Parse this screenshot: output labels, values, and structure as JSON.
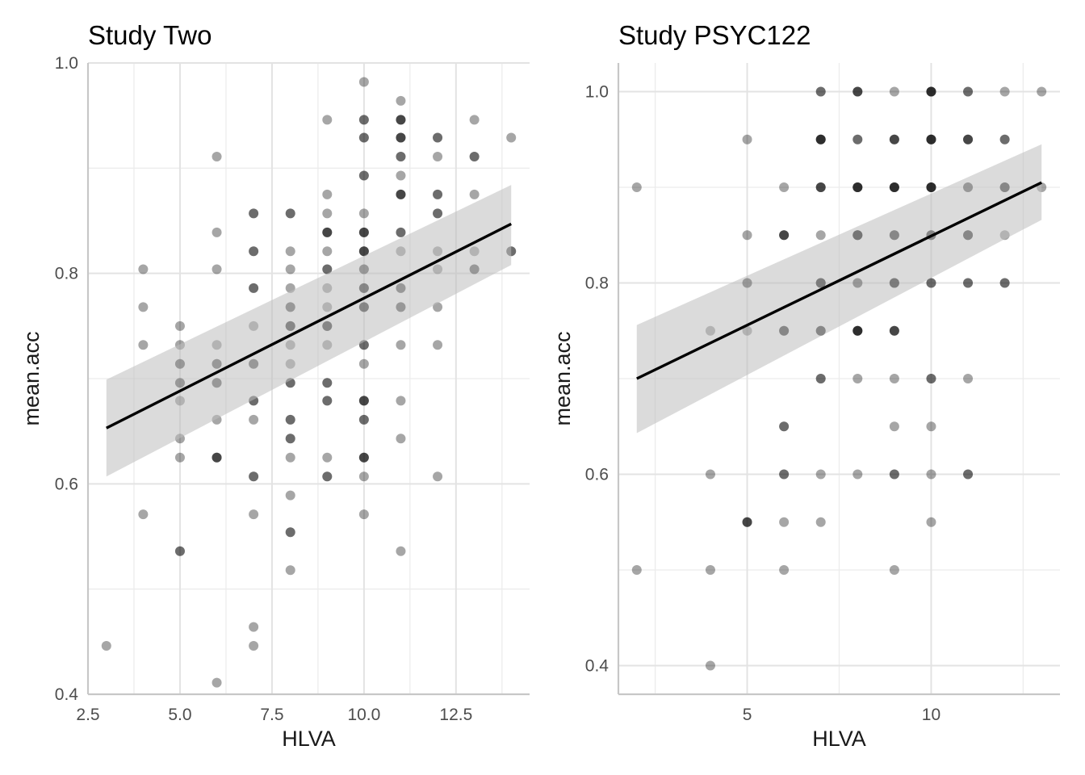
{
  "chart_data": [
    {
      "type": "scatter",
      "title": "Study Two",
      "xlabel": "HLVA",
      "ylabel": "mean.acc",
      "xlim": [
        2.5,
        14.5
      ],
      "ylim": [
        0.4,
        1.0
      ],
      "x_ticks": [
        2.5,
        5.0,
        7.5,
        10.0,
        12.5
      ],
      "x_tick_labels": [
        "2.5",
        "5.0",
        "7.5",
        "10.0",
        "12.5"
      ],
      "y_ticks": [
        0.4,
        0.6,
        0.8,
        1.0
      ],
      "y_tick_labels": [
        "0.4",
        "0.6",
        "0.8",
        "1.0"
      ],
      "grid": true,
      "point_color": "#000000",
      "point_alpha": 0.35,
      "fit": {
        "x0": 3,
        "y0": 0.653,
        "x1": 14,
        "y1": 0.847,
        "ci_lower": [
          0.607,
          0.808
        ],
        "ci_upper": [
          0.699,
          0.884
        ]
      },
      "points": [
        [
          3,
          0.446
        ],
        [
          4,
          0.804
        ],
        [
          4,
          0.768
        ],
        [
          4,
          0.732
        ],
        [
          4,
          0.571
        ],
        [
          5,
          0.75
        ],
        [
          5,
          0.732
        ],
        [
          5,
          0.714
        ],
        [
          5,
          0.714
        ],
        [
          5,
          0.696
        ],
        [
          5,
          0.696
        ],
        [
          5,
          0.679
        ],
        [
          5,
          0.643
        ],
        [
          5,
          0.625
        ],
        [
          5,
          0.536
        ],
        [
          5,
          0.536
        ],
        [
          6,
          0.911
        ],
        [
          6,
          0.839
        ],
        [
          6,
          0.804
        ],
        [
          6,
          0.732
        ],
        [
          6,
          0.714
        ],
        [
          6,
          0.714
        ],
        [
          6,
          0.696
        ],
        [
          6,
          0.696
        ],
        [
          6,
          0.661
        ],
        [
          6,
          0.625
        ],
        [
          6,
          0.625
        ],
        [
          6,
          0.625
        ],
        [
          6,
          0.411
        ],
        [
          7,
          0.857
        ],
        [
          7,
          0.857
        ],
        [
          7,
          0.821
        ],
        [
          7,
          0.821
        ],
        [
          7,
          0.786
        ],
        [
          7,
          0.786
        ],
        [
          7,
          0.75
        ],
        [
          7,
          0.714
        ],
        [
          7,
          0.714
        ],
        [
          7,
          0.679
        ],
        [
          7,
          0.679
        ],
        [
          7,
          0.661
        ],
        [
          7,
          0.607
        ],
        [
          7,
          0.607
        ],
        [
          7,
          0.571
        ],
        [
          7,
          0.464
        ],
        [
          7,
          0.446
        ],
        [
          8,
          0.857
        ],
        [
          8,
          0.857
        ],
        [
          8,
          0.821
        ],
        [
          8,
          0.804
        ],
        [
          8,
          0.786
        ],
        [
          8,
          0.768
        ],
        [
          8,
          0.768
        ],
        [
          8,
          0.75
        ],
        [
          8,
          0.75
        ],
        [
          8,
          0.75
        ],
        [
          8,
          0.732
        ],
        [
          8,
          0.714
        ],
        [
          8,
          0.696
        ],
        [
          8,
          0.696
        ],
        [
          8,
          0.661
        ],
        [
          8,
          0.661
        ],
        [
          8,
          0.643
        ],
        [
          8,
          0.643
        ],
        [
          8,
          0.625
        ],
        [
          8,
          0.589
        ],
        [
          8,
          0.554
        ],
        [
          8,
          0.554
        ],
        [
          8,
          0.518
        ],
        [
          9,
          0.946
        ],
        [
          9,
          0.875
        ],
        [
          9,
          0.857
        ],
        [
          9,
          0.839
        ],
        [
          9,
          0.839
        ],
        [
          9,
          0.839
        ],
        [
          9,
          0.821
        ],
        [
          9,
          0.804
        ],
        [
          9,
          0.804
        ],
        [
          9,
          0.786
        ],
        [
          9,
          0.768
        ],
        [
          9,
          0.75
        ],
        [
          9,
          0.75
        ],
        [
          9,
          0.75
        ],
        [
          9,
          0.732
        ],
        [
          9,
          0.696
        ],
        [
          9,
          0.696
        ],
        [
          9,
          0.679
        ],
        [
          9,
          0.679
        ],
        [
          9,
          0.625
        ],
        [
          9,
          0.607
        ],
        [
          9,
          0.607
        ],
        [
          10,
          0.982
        ],
        [
          10,
          0.946
        ],
        [
          10,
          0.946
        ],
        [
          10,
          0.929
        ],
        [
          10,
          0.929
        ],
        [
          10,
          0.893
        ],
        [
          10,
          0.893
        ],
        [
          10,
          0.857
        ],
        [
          10,
          0.839
        ],
        [
          10,
          0.839
        ],
        [
          10,
          0.839
        ],
        [
          10,
          0.821
        ],
        [
          10,
          0.821
        ],
        [
          10,
          0.821
        ],
        [
          10,
          0.804
        ],
        [
          10,
          0.804
        ],
        [
          10,
          0.786
        ],
        [
          10,
          0.786
        ],
        [
          10,
          0.786
        ],
        [
          10,
          0.768
        ],
        [
          10,
          0.768
        ],
        [
          10,
          0.768
        ],
        [
          10,
          0.732
        ],
        [
          10,
          0.732
        ],
        [
          10,
          0.714
        ],
        [
          10,
          0.679
        ],
        [
          10,
          0.679
        ],
        [
          10,
          0.679
        ],
        [
          10,
          0.661
        ],
        [
          10,
          0.661
        ],
        [
          10,
          0.625
        ],
        [
          10,
          0.625
        ],
        [
          10,
          0.625
        ],
        [
          10,
          0.607
        ],
        [
          10,
          0.571
        ],
        [
          11,
          0.964
        ],
        [
          11,
          0.946
        ],
        [
          11,
          0.946
        ],
        [
          11,
          0.946
        ],
        [
          11,
          0.929
        ],
        [
          11,
          0.929
        ],
        [
          11,
          0.929
        ],
        [
          11,
          0.911
        ],
        [
          11,
          0.911
        ],
        [
          11,
          0.893
        ],
        [
          11,
          0.875
        ],
        [
          11,
          0.875
        ],
        [
          11,
          0.875
        ],
        [
          11,
          0.839
        ],
        [
          11,
          0.839
        ],
        [
          11,
          0.821
        ],
        [
          11,
          0.786
        ],
        [
          11,
          0.786
        ],
        [
          11,
          0.768
        ],
        [
          11,
          0.768
        ],
        [
          11,
          0.732
        ],
        [
          11,
          0.679
        ],
        [
          11,
          0.643
        ],
        [
          11,
          0.536
        ],
        [
          12,
          0.929
        ],
        [
          12,
          0.929
        ],
        [
          12,
          0.911
        ],
        [
          12,
          0.875
        ],
        [
          12,
          0.875
        ],
        [
          12,
          0.857
        ],
        [
          12,
          0.857
        ],
        [
          12,
          0.821
        ],
        [
          12,
          0.804
        ],
        [
          12,
          0.768
        ],
        [
          12,
          0.732
        ],
        [
          12,
          0.607
        ],
        [
          13,
          0.946
        ],
        [
          13,
          0.911
        ],
        [
          13,
          0.911
        ],
        [
          13,
          0.875
        ],
        [
          13,
          0.821
        ],
        [
          13,
          0.804
        ],
        [
          13,
          0.804
        ],
        [
          14,
          0.929
        ],
        [
          14,
          0.821
        ],
        [
          14,
          0.821
        ]
      ]
    },
    {
      "type": "scatter",
      "title": "Study PSYC122",
      "xlabel": "HLVA",
      "ylabel": "mean.acc",
      "xlim": [
        1.5,
        13.5
      ],
      "ylim": [
        0.37,
        1.03
      ],
      "x_ticks": [
        5,
        10
      ],
      "x_tick_labels": [
        "5",
        "10"
      ],
      "y_ticks": [
        0.4,
        0.6,
        0.8,
        1.0
      ],
      "y_tick_labels": [
        "0.4",
        "0.6",
        "0.8",
        "1.0"
      ],
      "grid": true,
      "point_color": "#000000",
      "point_alpha": 0.35,
      "fit": {
        "x0": 2,
        "y0": 0.7,
        "x1": 13,
        "y1": 0.905,
        "ci_lower": [
          0.643,
          0.866
        ],
        "ci_upper": [
          0.756,
          0.945
        ]
      },
      "points": [
        [
          2,
          0.9
        ],
        [
          2,
          0.5
        ],
        [
          4,
          0.75
        ],
        [
          4,
          0.6
        ],
        [
          4,
          0.5
        ],
        [
          4,
          0.4
        ],
        [
          5,
          0.95
        ],
        [
          5,
          0.85
        ],
        [
          5,
          0.8
        ],
        [
          5,
          0.8
        ],
        [
          5,
          0.75
        ],
        [
          5,
          0.55
        ],
        [
          5,
          0.55
        ],
        [
          5,
          0.55
        ],
        [
          6,
          0.9
        ],
        [
          6,
          0.85
        ],
        [
          6,
          0.85
        ],
        [
          6,
          0.85
        ],
        [
          6,
          0.75
        ],
        [
          6,
          0.75
        ],
        [
          6,
          0.75
        ],
        [
          6,
          0.65
        ],
        [
          6,
          0.65
        ],
        [
          6,
          0.6
        ],
        [
          6,
          0.6
        ],
        [
          6,
          0.55
        ],
        [
          6,
          0.5
        ],
        [
          7,
          1.0
        ],
        [
          7,
          1.0
        ],
        [
          7,
          0.95
        ],
        [
          7,
          0.95
        ],
        [
          7,
          0.95
        ],
        [
          7,
          0.95
        ],
        [
          7,
          0.9
        ],
        [
          7,
          0.9
        ],
        [
          7,
          0.9
        ],
        [
          7,
          0.85
        ],
        [
          7,
          0.8
        ],
        [
          7,
          0.8
        ],
        [
          7,
          0.8
        ],
        [
          7,
          0.8
        ],
        [
          7,
          0.75
        ],
        [
          7,
          0.75
        ],
        [
          7,
          0.75
        ],
        [
          7,
          0.7
        ],
        [
          7,
          0.7
        ],
        [
          7,
          0.6
        ],
        [
          7,
          0.55
        ],
        [
          8,
          1.0
        ],
        [
          8,
          1.0
        ],
        [
          8,
          1.0
        ],
        [
          8,
          0.95
        ],
        [
          8,
          0.95
        ],
        [
          8,
          0.9
        ],
        [
          8,
          0.9
        ],
        [
          8,
          0.9
        ],
        [
          8,
          0.9
        ],
        [
          8,
          0.85
        ],
        [
          8,
          0.85
        ],
        [
          8,
          0.85
        ],
        [
          8,
          0.85
        ],
        [
          8,
          0.85
        ],
        [
          8,
          0.8
        ],
        [
          8,
          0.8
        ],
        [
          8,
          0.75
        ],
        [
          8,
          0.75
        ],
        [
          8,
          0.75
        ],
        [
          8,
          0.75
        ],
        [
          8,
          0.7
        ],
        [
          8,
          0.6
        ],
        [
          9,
          1.0
        ],
        [
          9,
          0.95
        ],
        [
          9,
          0.95
        ],
        [
          9,
          0.95
        ],
        [
          9,
          0.9
        ],
        [
          9,
          0.9
        ],
        [
          9,
          0.9
        ],
        [
          9,
          0.9
        ],
        [
          9,
          0.85
        ],
        [
          9,
          0.85
        ],
        [
          9,
          0.85
        ],
        [
          9,
          0.8
        ],
        [
          9,
          0.8
        ],
        [
          9,
          0.8
        ],
        [
          9,
          0.8
        ],
        [
          9,
          0.75
        ],
        [
          9,
          0.75
        ],
        [
          9,
          0.75
        ],
        [
          9,
          0.7
        ],
        [
          9,
          0.65
        ],
        [
          9,
          0.6
        ],
        [
          9,
          0.6
        ],
        [
          9,
          0.5
        ],
        [
          10,
          1.0
        ],
        [
          10,
          1.0
        ],
        [
          10,
          1.0
        ],
        [
          10,
          1.0
        ],
        [
          10,
          0.95
        ],
        [
          10,
          0.95
        ],
        [
          10,
          0.95
        ],
        [
          10,
          0.95
        ],
        [
          10,
          0.9
        ],
        [
          10,
          0.9
        ],
        [
          10,
          0.9
        ],
        [
          10,
          0.9
        ],
        [
          10,
          0.85
        ],
        [
          10,
          0.85
        ],
        [
          10,
          0.85
        ],
        [
          10,
          0.8
        ],
        [
          10,
          0.8
        ],
        [
          10,
          0.7
        ],
        [
          10,
          0.7
        ],
        [
          10,
          0.65
        ],
        [
          10,
          0.6
        ],
        [
          10,
          0.55
        ],
        [
          11,
          1.0
        ],
        [
          11,
          1.0
        ],
        [
          11,
          0.95
        ],
        [
          11,
          0.95
        ],
        [
          11,
          0.95
        ],
        [
          11,
          0.9
        ],
        [
          11,
          0.9
        ],
        [
          11,
          0.85
        ],
        [
          11,
          0.85
        ],
        [
          11,
          0.85
        ],
        [
          11,
          0.8
        ],
        [
          11,
          0.8
        ],
        [
          11,
          0.7
        ],
        [
          11,
          0.6
        ],
        [
          11,
          0.6
        ],
        [
          12,
          1.0
        ],
        [
          12,
          0.95
        ],
        [
          12,
          0.95
        ],
        [
          12,
          0.9
        ],
        [
          12,
          0.9
        ],
        [
          12,
          0.9
        ],
        [
          12,
          0.85
        ],
        [
          12,
          0.8
        ],
        [
          12,
          0.8
        ],
        [
          13,
          1.0
        ],
        [
          13,
          0.9
        ]
      ]
    }
  ]
}
